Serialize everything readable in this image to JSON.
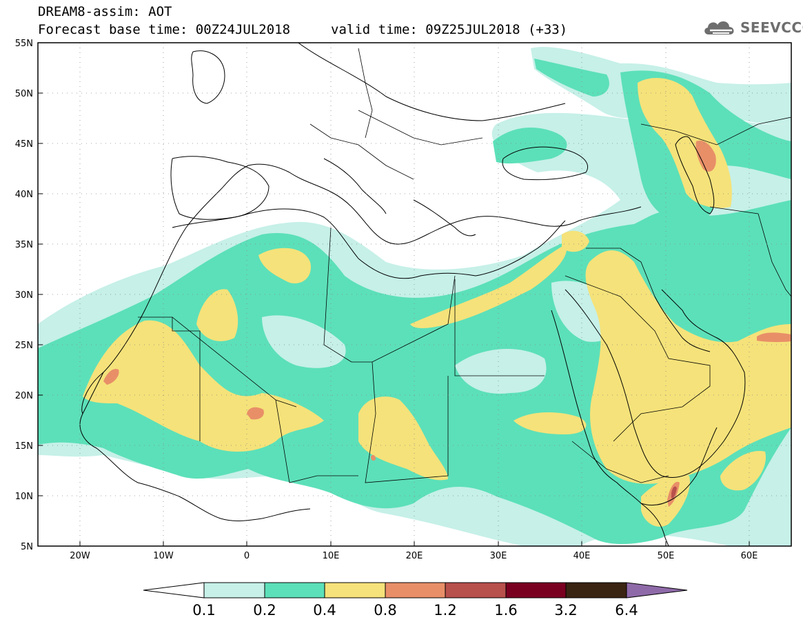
{
  "header": {
    "title": "DREAM8-assim: AOT",
    "base_time": "Forecast base time: 00Z24JUL2018",
    "valid_time": "valid time: 09Z25JUL2018 (+33)",
    "logo_text": "SEEVCCC",
    "logo_icon": "cloud-icon"
  },
  "map": {
    "lon_range": [
      -25,
      65
    ],
    "lat_range": [
      5,
      55
    ],
    "lon_ticks": [
      "20W",
      "10W",
      "0",
      "10E",
      "20E",
      "30E",
      "40E",
      "50E",
      "60E"
    ],
    "lat_ticks": [
      "5N",
      "10N",
      "15N",
      "20N",
      "25N",
      "30N",
      "35N",
      "40N",
      "45N",
      "50N",
      "55N"
    ],
    "grid": "dotted"
  },
  "colorbar": {
    "labels": [
      "0.1",
      "0.2",
      "0.4",
      "0.8",
      "1.2",
      "1.6",
      "3.2",
      "6.4"
    ],
    "colors": [
      "#ffffff",
      "#c6f0e8",
      "#5ce0b9",
      "#f5e27a",
      "#e88f68",
      "#b8504c",
      "#7a0020",
      "#3a2412",
      "#8e6aa8"
    ]
  }
}
